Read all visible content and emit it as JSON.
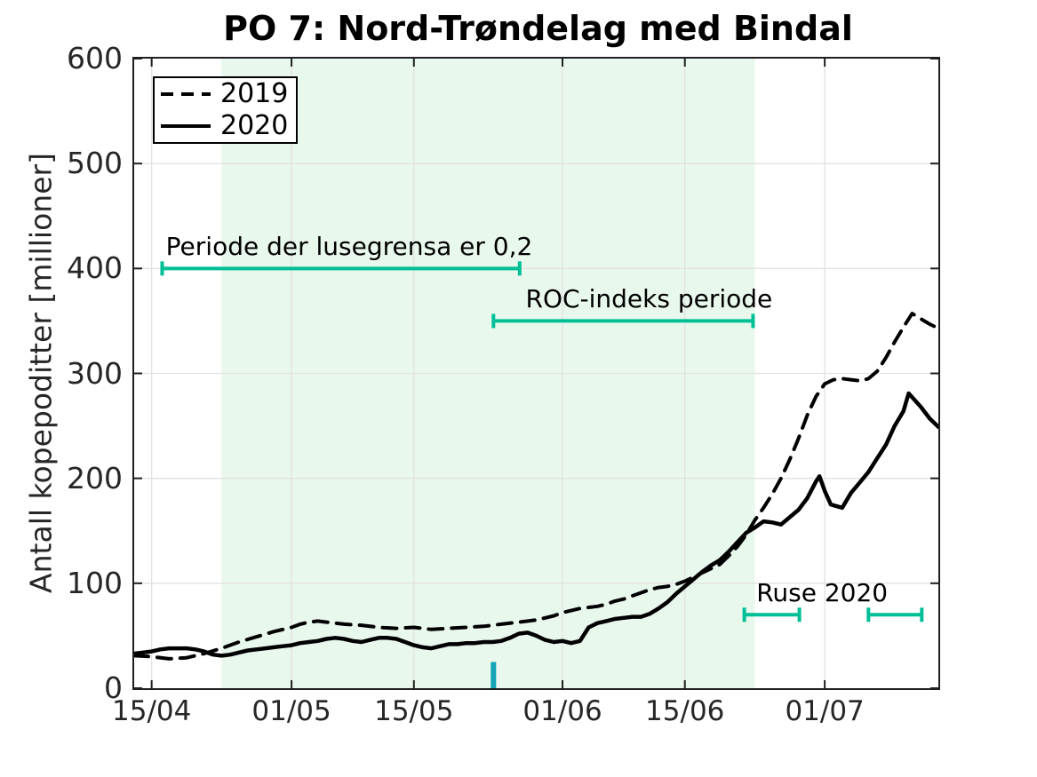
{
  "title": "PO 7: Nord-Trøndelag med Bindal",
  "colors": {
    "annotation_line": "#00bf96",
    "event_marker": "#16a3b7",
    "shaded_band": "#e9f8ec",
    "gridline": "#e2e2e2",
    "axis": "#1f1f1f",
    "series": "#000000"
  },
  "chart_data": {
    "type": "line",
    "title": "PO 7: Nord-Trøndelag med Bindal",
    "xlabel": "",
    "ylabel": "Antall kopepoditter [millioner]",
    "ylim": [
      0,
      600
    ],
    "yticks": [
      0,
      100,
      200,
      300,
      400,
      500,
      600
    ],
    "xlim_days": [
      0,
      92
    ],
    "x_day0_date": "13/04",
    "grid": true,
    "xticks": [
      {
        "day": 2,
        "label": "15/04"
      },
      {
        "day": 18,
        "label": "01/05"
      },
      {
        "day": 32,
        "label": "15/05"
      },
      {
        "day": 49,
        "label": "01/06"
      },
      {
        "day": 63,
        "label": "15/06"
      },
      {
        "day": 79,
        "label": "01/07"
      }
    ],
    "legend": {
      "position": "top-left",
      "entries": [
        {
          "label": "2019",
          "style": "dashed"
        },
        {
          "label": "2020",
          "style": "solid"
        }
      ]
    },
    "shaded_band": {
      "start_day": 10,
      "end_day": 71
    },
    "annotations": [
      {
        "type": "hline-span",
        "label": "Periode der lusegrensa er 0,2",
        "y": 400,
        "start_day": 3.2,
        "end_day": 44.1,
        "label_center_day": 24.6
      },
      {
        "type": "hline-span",
        "label": "ROC-indeks periode",
        "y": 350,
        "start_day": 41.1,
        "end_day": 70.8,
        "label_center_day": 58.9
      },
      {
        "type": "hline-span",
        "label": "Ruse 2020",
        "y": 70,
        "start_day": 69.8,
        "end_day": 76.1,
        "label_center_day": 78.7
      },
      {
        "type": "hline-span",
        "label": "",
        "y": 70,
        "start_day": 84.0,
        "end_day": 90.1,
        "label_center_day": null
      },
      {
        "type": "vline-marker",
        "label": "",
        "day": 41.1,
        "y_from": 0,
        "y_to": 25
      }
    ],
    "series": [
      {
        "name": "2019",
        "style": "dashed",
        "points": [
          [
            0,
            31
          ],
          [
            2,
            30
          ],
          [
            4,
            28
          ],
          [
            6,
            29
          ],
          [
            8,
            33
          ],
          [
            10,
            38
          ],
          [
            12,
            44
          ],
          [
            14,
            49
          ],
          [
            16,
            54
          ],
          [
            18,
            58
          ],
          [
            19,
            61
          ],
          [
            20,
            63
          ],
          [
            21,
            64
          ],
          [
            22,
            63
          ],
          [
            23,
            62
          ],
          [
            24,
            61
          ],
          [
            26,
            60
          ],
          [
            28,
            58
          ],
          [
            30,
            57
          ],
          [
            32,
            58
          ],
          [
            34,
            56
          ],
          [
            36,
            57
          ],
          [
            38,
            58
          ],
          [
            40,
            59
          ],
          [
            42,
            61
          ],
          [
            44,
            63
          ],
          [
            46,
            65
          ],
          [
            48,
            69
          ],
          [
            49,
            72
          ],
          [
            50,
            74
          ],
          [
            51,
            76
          ],
          [
            52,
            77
          ],
          [
            53,
            78
          ],
          [
            54,
            80
          ],
          [
            55,
            83
          ],
          [
            56,
            85
          ],
          [
            57,
            88
          ],
          [
            58,
            91
          ],
          [
            59,
            94
          ],
          [
            60,
            96
          ],
          [
            61,
            97
          ],
          [
            62,
            99
          ],
          [
            63,
            102
          ],
          [
            64,
            106
          ],
          [
            65,
            110
          ],
          [
            66,
            114
          ],
          [
            67,
            118
          ],
          [
            68,
            126
          ],
          [
            69,
            135
          ],
          [
            70,
            146
          ],
          [
            71,
            160
          ],
          [
            72,
            172
          ],
          [
            73,
            185
          ],
          [
            74,
            200
          ],
          [
            75,
            218
          ],
          [
            76,
            238
          ],
          [
            77,
            260
          ],
          [
            78,
            278
          ],
          [
            79,
            290
          ],
          [
            80,
            294
          ],
          [
            81,
            295
          ],
          [
            82,
            294
          ],
          [
            83,
            293
          ],
          [
            84,
            295
          ],
          [
            85,
            302
          ],
          [
            86,
            315
          ],
          [
            87,
            330
          ],
          [
            88,
            344
          ],
          [
            89,
            357
          ],
          [
            90,
            352
          ],
          [
            91,
            347
          ],
          [
            92,
            343
          ]
        ]
      },
      {
        "name": "2020",
        "style": "solid",
        "points": [
          [
            0,
            33
          ],
          [
            1,
            34
          ],
          [
            2,
            35
          ],
          [
            3,
            37
          ],
          [
            4,
            38
          ],
          [
            5,
            38
          ],
          [
            6,
            38
          ],
          [
            7,
            37
          ],
          [
            8,
            35
          ],
          [
            9,
            32
          ],
          [
            10,
            31
          ],
          [
            11,
            32
          ],
          [
            12,
            34
          ],
          [
            13,
            36
          ],
          [
            14,
            37
          ],
          [
            15,
            38
          ],
          [
            16,
            39
          ],
          [
            17,
            40
          ],
          [
            18,
            41
          ],
          [
            19,
            43
          ],
          [
            20,
            44
          ],
          [
            21,
            45
          ],
          [
            22,
            47
          ],
          [
            23,
            48
          ],
          [
            24,
            47
          ],
          [
            25,
            45
          ],
          [
            26,
            44
          ],
          [
            27,
            46
          ],
          [
            28,
            48
          ],
          [
            29,
            48
          ],
          [
            30,
            47
          ],
          [
            31,
            44
          ],
          [
            32,
            41
          ],
          [
            33,
            39
          ],
          [
            34,
            38
          ],
          [
            35,
            40
          ],
          [
            36,
            42
          ],
          [
            37,
            42
          ],
          [
            38,
            43
          ],
          [
            39,
            43
          ],
          [
            40,
            44
          ],
          [
            41,
            44
          ],
          [
            42,
            45
          ],
          [
            43,
            48
          ],
          [
            44,
            52
          ],
          [
            45,
            53
          ],
          [
            46,
            50
          ],
          [
            47,
            46
          ],
          [
            48,
            44
          ],
          [
            49,
            45
          ],
          [
            50,
            43
          ],
          [
            51,
            45
          ],
          [
            52,
            58
          ],
          [
            53,
            62
          ],
          [
            54,
            64
          ],
          [
            55,
            66
          ],
          [
            56,
            67
          ],
          [
            57,
            68
          ],
          [
            58,
            68
          ],
          [
            59,
            71
          ],
          [
            60,
            76
          ],
          [
            61,
            82
          ],
          [
            62,
            90
          ],
          [
            63,
            97
          ],
          [
            64,
            104
          ],
          [
            65,
            111
          ],
          [
            66,
            117
          ],
          [
            67,
            122
          ],
          [
            68,
            130
          ],
          [
            69,
            139
          ],
          [
            70,
            148
          ],
          [
            71,
            153
          ],
          [
            72,
            159
          ],
          [
            73,
            158
          ],
          [
            74,
            156
          ],
          [
            75,
            163
          ],
          [
            76,
            170
          ],
          [
            77,
            181
          ],
          [
            78,
            197
          ],
          [
            78.4,
            202
          ],
          [
            79,
            188
          ],
          [
            79.7,
            175
          ],
          [
            81,
            172
          ],
          [
            82,
            186
          ],
          [
            83,
            196
          ],
          [
            84,
            206
          ],
          [
            85,
            219
          ],
          [
            86,
            232
          ],
          [
            87,
            250
          ],
          [
            88,
            264
          ],
          [
            88.6,
            281
          ],
          [
            90,
            268
          ],
          [
            91,
            257
          ],
          [
            92,
            249
          ]
        ]
      }
    ]
  }
}
